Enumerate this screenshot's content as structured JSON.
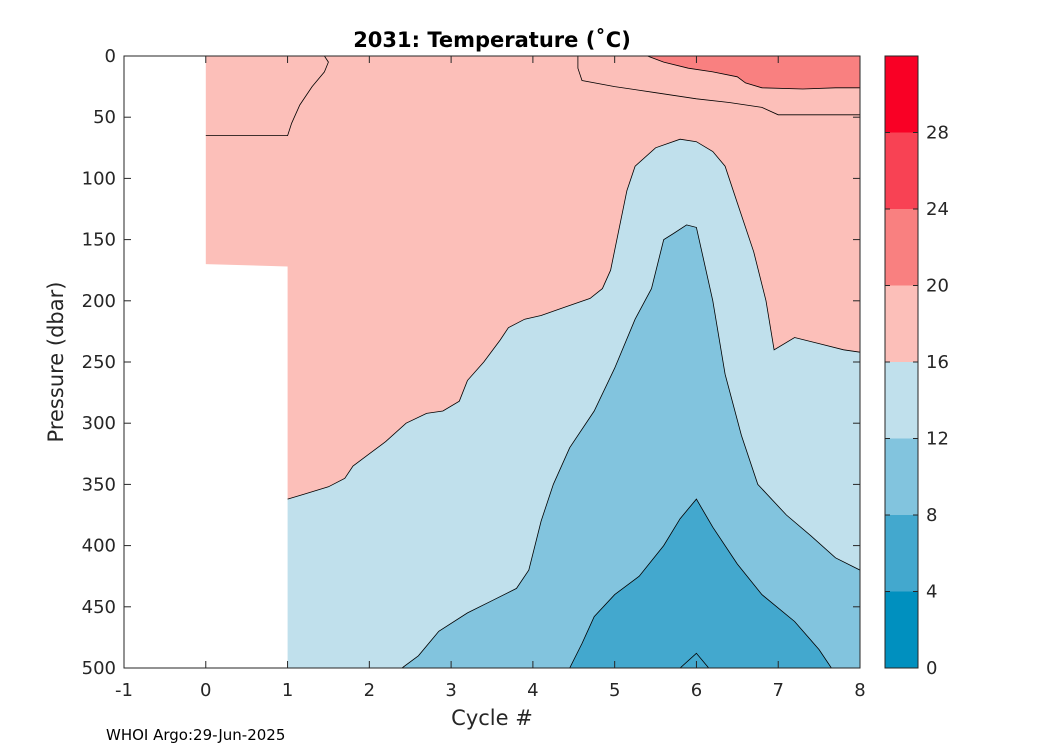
{
  "chart_data": {
    "type": "heatmap",
    "title": "2031:  Temperature (˚C)",
    "xlabel": "Cycle #",
    "ylabel": "Pressure (dbar)",
    "xlim": [
      -1,
      8
    ],
    "ylim": [
      0,
      500
    ],
    "y_reversed": true,
    "x_ticks": [
      "-1",
      "0",
      "1",
      "2",
      "3",
      "4",
      "5",
      "6",
      "7",
      "8"
    ],
    "y_ticks": [
      "0",
      "50",
      "100",
      "150",
      "200",
      "250",
      "300",
      "350",
      "400",
      "450",
      "500"
    ],
    "colorbar": {
      "range": [
        0,
        32
      ],
      "ticks": [
        "0",
        "4",
        "8",
        "12",
        "16",
        "20",
        "24",
        "28"
      ],
      "levels": [
        {
          "min": 0,
          "max": 4,
          "color": "#0090bf"
        },
        {
          "min": 4,
          "max": 8,
          "color": "#43a8ce"
        },
        {
          "min": 8,
          "max": 12,
          "color": "#82c4de"
        },
        {
          "min": 12,
          "max": 16,
          "color": "#c0e0ec"
        },
        {
          "min": 16,
          "max": 20,
          "color": "#fcbfb9"
        },
        {
          "min": 20,
          "max": 24,
          "color": "#f98080"
        },
        {
          "min": 24,
          "max": 28,
          "color": "#f84254"
        },
        {
          "min": 28,
          "max": 32,
          "color": "#f90025"
        }
      ]
    },
    "no_data_region": [
      [
        -1,
        0
      ],
      [
        0,
        0
      ],
      [
        0,
        170
      ],
      [
        1,
        172
      ],
      [
        1,
        500
      ],
      [
        -1,
        500
      ]
    ],
    "contours": [
      {
        "level": 20,
        "points": [
          [
            5.4,
            0
          ],
          [
            5.6,
            5
          ],
          [
            5.9,
            10
          ],
          [
            6.2,
            13
          ],
          [
            6.5,
            17
          ],
          [
            6.6,
            22
          ],
          [
            6.8,
            26
          ],
          [
            7.3,
            27
          ],
          [
            7.7,
            26
          ],
          [
            8,
            26
          ]
        ]
      },
      {
        "level": 16,
        "points": [
          [
            0,
            65
          ],
          [
            1,
            65
          ],
          [
            1.05,
            55
          ],
          [
            1.15,
            40
          ],
          [
            1.3,
            25
          ],
          [
            1.45,
            13
          ],
          [
            1.5,
            5
          ],
          [
            1.45,
            0
          ]
        ]
      },
      {
        "level": 16,
        "points": [
          [
            4.55,
            0
          ],
          [
            4.55,
            10
          ],
          [
            4.6,
            20
          ],
          [
            5,
            25
          ],
          [
            5.5,
            30
          ],
          [
            6,
            35
          ],
          [
            6.4,
            38
          ],
          [
            6.8,
            42
          ],
          [
            7,
            48
          ],
          [
            8,
            48
          ]
        ]
      },
      {
        "level": 16,
        "points": [
          [
            1,
            362
          ],
          [
            1.2,
            358
          ],
          [
            1.5,
            352
          ],
          [
            1.7,
            345
          ],
          [
            1.8,
            335
          ],
          [
            2,
            325
          ],
          [
            2.2,
            315
          ],
          [
            2.45,
            300
          ],
          [
            2.7,
            292
          ],
          [
            2.9,
            290
          ],
          [
            3.1,
            282
          ],
          [
            3.2,
            265
          ],
          [
            3.4,
            250
          ],
          [
            3.6,
            232
          ],
          [
            3.7,
            222
          ],
          [
            3.9,
            215
          ],
          [
            4.1,
            212
          ],
          [
            4.4,
            205
          ],
          [
            4.7,
            198
          ],
          [
            4.85,
            190
          ],
          [
            4.95,
            175
          ],
          [
            5.15,
            110
          ],
          [
            5.25,
            90
          ],
          [
            5.5,
            75
          ],
          [
            5.8,
            68
          ],
          [
            6.0,
            70
          ],
          [
            6.2,
            78
          ],
          [
            6.35,
            90
          ],
          [
            6.5,
            120
          ],
          [
            6.7,
            160
          ],
          [
            6.85,
            200
          ],
          [
            6.95,
            240
          ],
          [
            7.2,
            230
          ],
          [
            7.5,
            235
          ],
          [
            7.8,
            240
          ],
          [
            8,
            242
          ]
        ]
      },
      {
        "level": 12,
        "points": [
          [
            2.4,
            500
          ],
          [
            2.6,
            490
          ],
          [
            2.85,
            470
          ],
          [
            3.2,
            455
          ],
          [
            3.5,
            445
          ],
          [
            3.8,
            435
          ],
          [
            3.95,
            420
          ],
          [
            4.1,
            380
          ],
          [
            4.25,
            350
          ],
          [
            4.45,
            320
          ],
          [
            4.75,
            290
          ],
          [
            5.0,
            255
          ],
          [
            5.25,
            215
          ],
          [
            5.45,
            190
          ],
          [
            5.6,
            150
          ],
          [
            5.72,
            145
          ],
          [
            5.88,
            138
          ],
          [
            6.0,
            140
          ],
          [
            6.2,
            200
          ],
          [
            6.35,
            260
          ],
          [
            6.55,
            310
          ],
          [
            6.75,
            350
          ],
          [
            7.1,
            375
          ],
          [
            7.4,
            392
          ],
          [
            7.7,
            410
          ],
          [
            8,
            420
          ]
        ]
      },
      {
        "level": 8,
        "points": [
          [
            4.45,
            500
          ],
          [
            4.6,
            480
          ],
          [
            4.75,
            458
          ],
          [
            5.0,
            440
          ],
          [
            5.3,
            425
          ],
          [
            5.6,
            400
          ],
          [
            5.8,
            378
          ],
          [
            6.0,
            362
          ],
          [
            6.2,
            385
          ],
          [
            6.5,
            415
          ],
          [
            6.8,
            440
          ],
          [
            7.2,
            462
          ],
          [
            7.5,
            485
          ],
          [
            7.65,
            500
          ]
        ]
      },
      {
        "level": 8,
        "points": [
          [
            5.8,
            500
          ],
          [
            6.0,
            488
          ],
          [
            6.15,
            500
          ]
        ]
      }
    ],
    "footer": "WHOI Argo:29-Jun-2025"
  }
}
